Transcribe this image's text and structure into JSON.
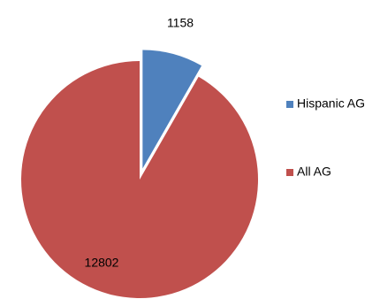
{
  "chart_data": {
    "type": "pie",
    "exploded": true,
    "legend_position": "right",
    "slices": [
      {
        "label": "Hispanic AG",
        "value": 1158,
        "value_label": "1158",
        "color": "#4F81BD"
      },
      {
        "label": "All AG",
        "value": 12802,
        "value_label": "12802",
        "color": "#C0504D"
      }
    ]
  }
}
